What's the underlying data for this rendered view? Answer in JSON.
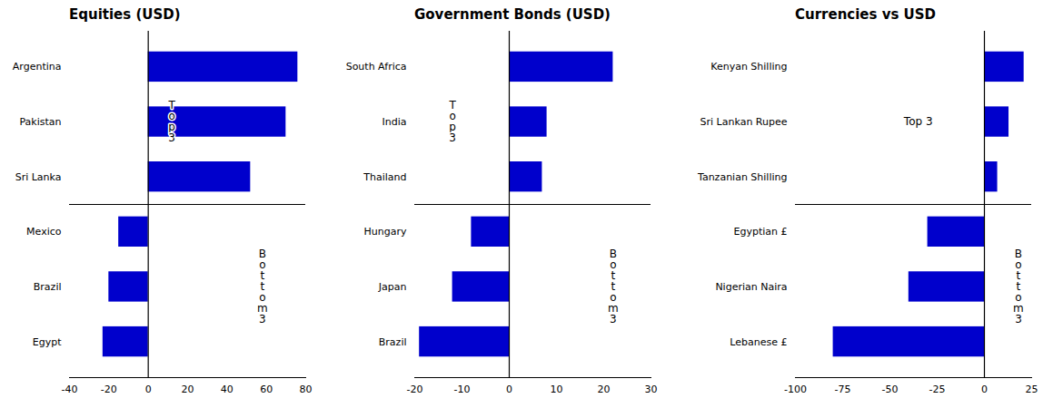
{
  "chart_data": [
    {
      "type": "bar",
      "orientation": "horizontal",
      "title": "Equities (USD)",
      "categories": [
        "Argentina",
        "Pakistan",
        "Sri Lanka",
        "Mexico",
        "Brazil",
        "Egypt"
      ],
      "values": [
        76,
        70,
        52,
        -15,
        -20,
        -23
      ],
      "color": "#0000CC",
      "xlim": [
        -40,
        80
      ],
      "xticks": [
        -40,
        -20,
        0,
        20,
        40,
        60,
        80
      ],
      "annotations": [
        {
          "text": "T\no\np\n3",
          "x": 12,
          "y": "Pakistan"
        },
        {
          "text": "B\no\nt\nt\no\nm\n3",
          "x": 58,
          "y": "Brazil"
        }
      ]
    },
    {
      "type": "bar",
      "orientation": "horizontal",
      "title": "Government Bonds (USD)",
      "categories": [
        "South Africa",
        "India",
        "Thailand",
        "Hungary",
        "Japan",
        "Brazil"
      ],
      "values": [
        22,
        8,
        7,
        -8,
        -12,
        -19
      ],
      "color": "#0000CC",
      "xlim": [
        -20,
        30
      ],
      "xticks": [
        -20,
        -10,
        0,
        10,
        20,
        30
      ],
      "annotations": [
        {
          "text": "T\no\np\n3",
          "x": -12,
          "y": "India"
        },
        {
          "text": "B\no\nt\nt\no\nm\n3",
          "x": 22,
          "y": "Japan"
        }
      ]
    },
    {
      "type": "bar",
      "orientation": "horizontal",
      "title": "Currencies vs USD",
      "categories": [
        "Kenyan Shilling",
        "Sri Lankan Rupee",
        "Tanzanian Shilling",
        "Egyptian £",
        "Nigerian Naira",
        "Lebanese £"
      ],
      "values": [
        21,
        13,
        7,
        -30,
        -40,
        -80
      ],
      "color": "#0000CC",
      "xlim": [
        -100,
        25
      ],
      "xticks": [
        -100,
        -75,
        -50,
        -25,
        0,
        25
      ],
      "annotations": [
        {
          "text": "Top 3",
          "x": -35,
          "y": "Sri Lankan Rupee"
        },
        {
          "text": "B\no\nt\nt\no\nm\n3",
          "x": 18,
          "y": "Nigerian Naira"
        }
      ]
    }
  ]
}
